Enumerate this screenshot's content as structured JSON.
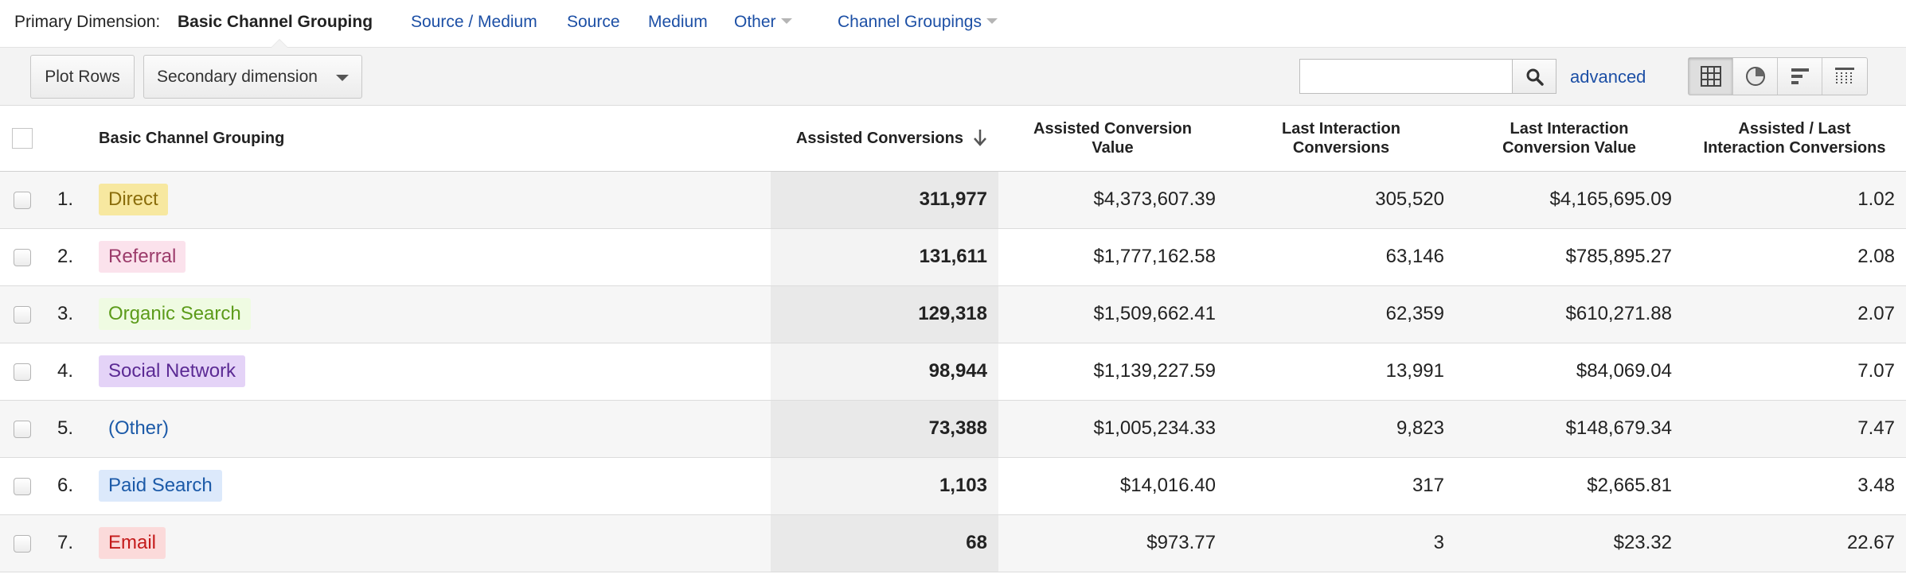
{
  "primary_dimension": {
    "label": "Primary Dimension:",
    "current": "Basic Channel Grouping",
    "links": [
      "Source / Medium",
      "Source",
      "Medium"
    ],
    "other_label": "Other",
    "channel_groupings_label": "Channel Groupings"
  },
  "toolbar": {
    "plot_rows_label": "Plot Rows",
    "secondary_dimension_label": "Secondary dimension",
    "search_value": "",
    "advanced_label": "advanced",
    "views": [
      "table-view-icon",
      "pie-view-icon",
      "bar-view-icon",
      "pivot-view-icon"
    ]
  },
  "table": {
    "headers": {
      "dimension": "Basic Channel Grouping",
      "assisted_conversions": "Assisted Conversions",
      "assisted_conversion_value_1": "Assisted Conversion",
      "assisted_conversion_value_2": "Value",
      "last_interaction_conversions_1": "Last Interaction",
      "last_interaction_conversions_2": "Conversions",
      "last_interaction_value_1": "Last Interaction",
      "last_interaction_value_2": "Conversion Value",
      "ratio_1": "Assisted / Last",
      "ratio_2": "Interaction Conversions"
    },
    "rows": [
      {
        "rank": "1.",
        "channel": "Direct",
        "chip_bg": "#f7e8a0",
        "chip_fg": "#8a6d0b",
        "assisted": "311,977",
        "assisted_value": "$4,373,607.39",
        "last": "305,520",
        "last_value": "$4,165,695.09",
        "ratio": "1.02"
      },
      {
        "rank": "2.",
        "channel": "Referral",
        "chip_bg": "#fbe2ec",
        "chip_fg": "#9b3b6a",
        "assisted": "131,611",
        "assisted_value": "$1,777,162.58",
        "last": "63,146",
        "last_value": "$785,895.27",
        "ratio": "2.08"
      },
      {
        "rank": "3.",
        "channel": "Organic Search",
        "chip_bg": "#effbe2",
        "chip_fg": "#5c9b1a",
        "assisted": "129,318",
        "assisted_value": "$1,509,662.41",
        "last": "62,359",
        "last_value": "$610,271.88",
        "ratio": "2.07"
      },
      {
        "rank": "4.",
        "channel": "Social Network",
        "chip_bg": "#e4d3f7",
        "chip_fg": "#5b2a94",
        "assisted": "98,944",
        "assisted_value": "$1,139,227.59",
        "last": "13,991",
        "last_value": "$84,069.04",
        "ratio": "7.07"
      },
      {
        "rank": "5.",
        "channel": "(Other)",
        "chip_bg": "transparent",
        "chip_fg": "#1c5aa8",
        "assisted": "73,388",
        "assisted_value": "$1,005,234.33",
        "last": "9,823",
        "last_value": "$148,679.34",
        "ratio": "7.47"
      },
      {
        "rank": "6.",
        "channel": "Paid Search",
        "chip_bg": "#dce9fb",
        "chip_fg": "#1c5aa8",
        "assisted": "1,103",
        "assisted_value": "$14,016.40",
        "last": "317",
        "last_value": "$2,665.81",
        "ratio": "3.48"
      },
      {
        "rank": "7.",
        "channel": "Email",
        "chip_bg": "#fbdada",
        "chip_fg": "#c41a1a",
        "assisted": "68",
        "assisted_value": "$973.77",
        "last": "3",
        "last_value": "$23.32",
        "ratio": "22.67"
      }
    ]
  }
}
